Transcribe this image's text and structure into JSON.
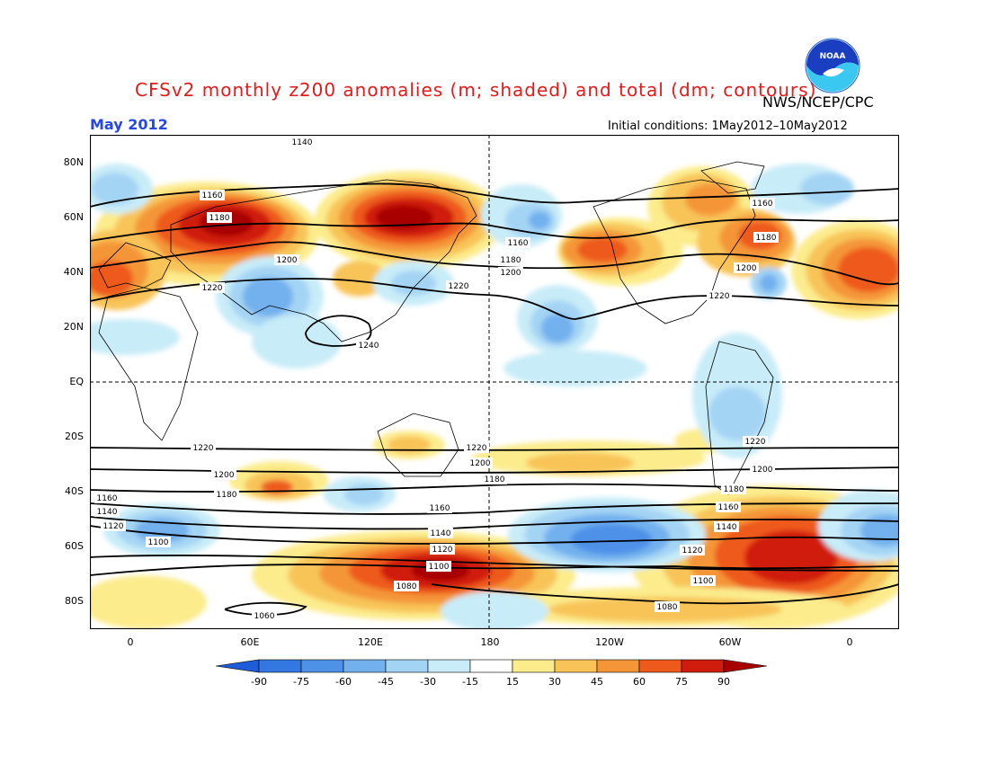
{
  "header": {
    "title": "CFSv2 monthly z200 anomalies (m; shaded) and total (dm; contours)",
    "agency": "NWS/NCEP/CPC",
    "logo_text": "NOAA",
    "month_label": "May 2012",
    "initial_conditions": "Initial conditions: 1May2012–10May2012"
  },
  "map": {
    "projection": "cylindrical",
    "lon_range": [
      -20,
      380
    ],
    "lat_range": [
      -90,
      90
    ],
    "lat_ticks": [
      "80N",
      "60N",
      "40N",
      "20N",
      "EQ",
      "20S",
      "40S",
      "60S",
      "80S"
    ],
    "lon_ticks": [
      "0",
      "60E",
      "120E",
      "180",
      "120W",
      "60W",
      "0"
    ],
    "dashed_lines": [
      "EQ",
      "180"
    ]
  },
  "contour_labels": [
    "1140",
    "1160",
    "1180",
    "1200",
    "1220",
    "1160",
    "1180",
    "1200",
    "1220",
    "1240",
    "1160",
    "1180",
    "1200",
    "1220",
    "1160",
    "1180",
    "1200",
    "1220",
    "1220",
    "1200",
    "1180",
    "1160",
    "1140",
    "1120",
    "1100",
    "1220",
    "1200",
    "1180",
    "1160",
    "1140",
    "1120",
    "1100",
    "1080",
    "1220",
    "1200",
    "1180",
    "1160",
    "1140",
    "1120",
    "1100",
    "1080",
    "1060"
  ],
  "colorbar": {
    "labels": [
      "-90",
      "-75",
      "-60",
      "-45",
      "-30",
      "-15",
      "15",
      "30",
      "45",
      "60",
      "75",
      "90"
    ],
    "colors": [
      "#1e5cd8",
      "#3278e0",
      "#4e92e8",
      "#72b0ee",
      "#a4d4f4",
      "#c8ecf8",
      "#ffffff",
      "#fcec8c",
      "#f8c458",
      "#f49638",
      "#ee5a1c",
      "#d01c0c",
      "#a80000"
    ]
  }
}
